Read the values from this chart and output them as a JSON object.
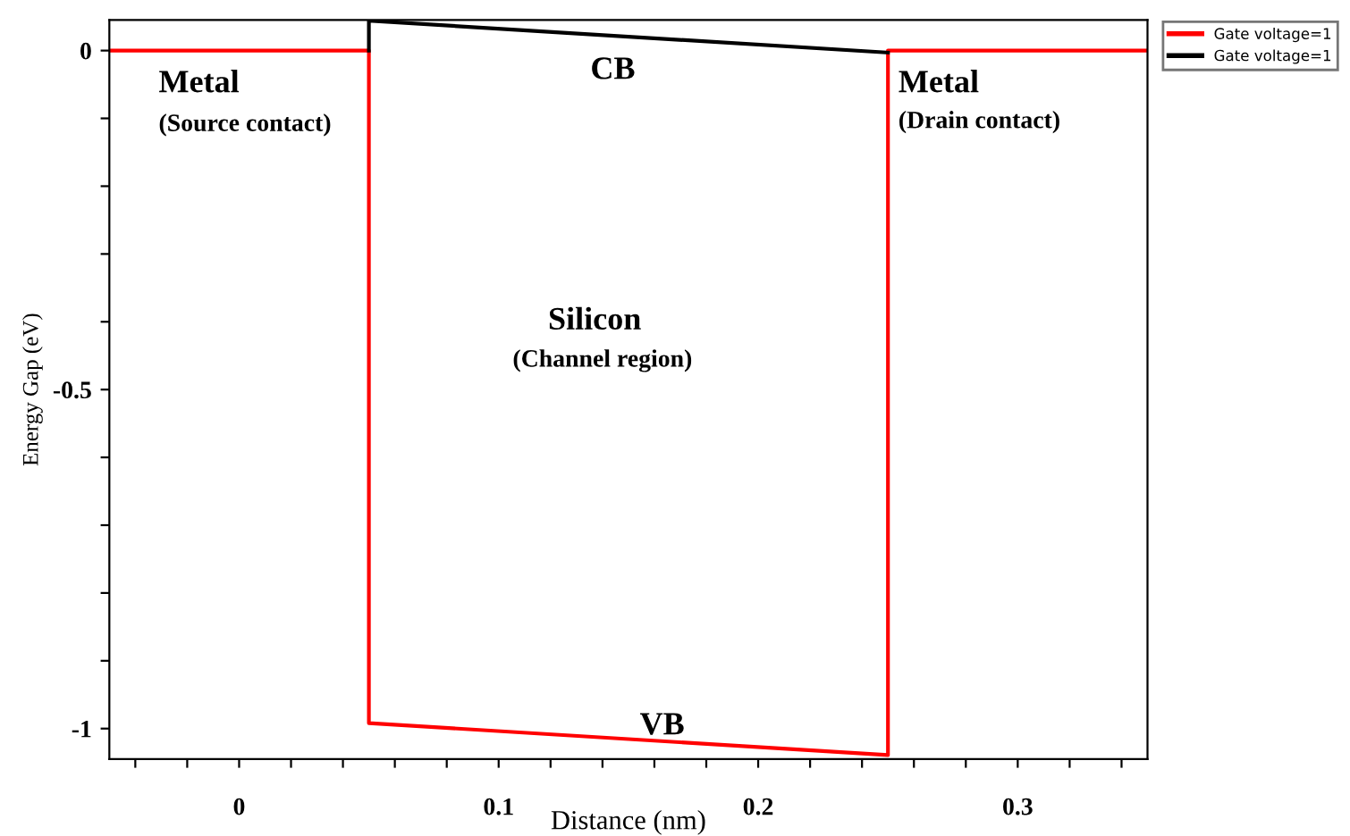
{
  "chart_data": {
    "type": "line",
    "xlabel": "Distance (nm)",
    "ylabel": "Energy Gap (eV)",
    "series": [
      {
        "name": "Gate voltage=1",
        "color": "#ff0000",
        "x": [
          -0.05,
          0.05,
          0.05,
          0.25,
          0.25,
          0.35
        ],
        "values": [
          0,
          0,
          -0.992,
          -1.039,
          0,
          0
        ]
      },
      {
        "name": "Gate voltage=1",
        "color": "#000000",
        "x": [
          0.05,
          0.05,
          0.25
        ],
        "values": [
          0,
          0.044,
          -0.003
        ]
      }
    ],
    "xlim": [
      -0.05,
      0.35
    ],
    "xticks": [
      {
        "value": -0.04,
        "label": null
      },
      {
        "value": -0.02,
        "label": null
      },
      0,
      {
        "value": 0.02,
        "label": null
      },
      {
        "value": 0.04,
        "label": null
      },
      {
        "value": 0.06,
        "label": null
      },
      {
        "value": 0.08,
        "label": null
      },
      0.1,
      {
        "value": 0.12,
        "label": null
      },
      {
        "value": 0.14,
        "label": null
      },
      {
        "value": 0.16,
        "label": null
      },
      {
        "value": 0.18,
        "label": null
      },
      0.2,
      {
        "value": 0.22,
        "label": null
      },
      {
        "value": 0.24,
        "label": null
      },
      {
        "value": 0.26,
        "label": null
      },
      {
        "value": 0.28,
        "label": null
      },
      0.3,
      {
        "value": 0.32,
        "label": null
      },
      {
        "value": 0.34,
        "label": null
      }
    ],
    "ylim": [
      -1.045,
      0.045
    ],
    "yticks": [
      0,
      {
        "value": -0.1,
        "label": null
      },
      {
        "value": -0.2,
        "label": null
      },
      {
        "value": -0.3,
        "label": null
      },
      {
        "value": -0.4,
        "label": null
      },
      -0.5,
      {
        "value": -0.6,
        "label": null
      },
      {
        "value": -0.7,
        "label": null
      },
      {
        "value": -0.8,
        "label": null
      },
      {
        "value": -0.9,
        "label": null
      },
      -1
    ],
    "grid": false,
    "legend": "top right",
    "marker": "none",
    "line_style": "solid",
    "annotations": [
      "Metal",
      "(Source contact)",
      "CB",
      "Metal",
      "(Drain contact)",
      "Silicon",
      "(Channel region)",
      "VB"
    ]
  }
}
